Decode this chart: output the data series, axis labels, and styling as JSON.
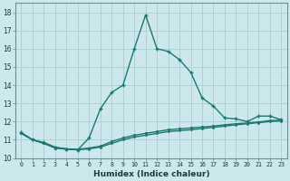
{
  "xlabel": "Humidex (Indice chaleur)",
  "bg_color": "#cce8ec",
  "grid_color": "#aacdd2",
  "line_color": "#1a7a6e",
  "ylim": [
    10.0,
    18.5
  ],
  "xlim": [
    -0.5,
    23.5
  ],
  "yticks": [
    10,
    11,
    12,
    13,
    14,
    15,
    16,
    17,
    18
  ],
  "xticks": [
    0,
    1,
    2,
    3,
    4,
    5,
    6,
    7,
    8,
    9,
    10,
    11,
    12,
    13,
    14,
    15,
    16,
    17,
    18,
    19,
    20,
    21,
    22,
    23
  ],
  "line1_x": [
    0,
    1,
    2,
    3,
    4,
    5,
    6,
    7,
    8,
    9,
    10,
    11,
    12,
    13,
    14,
    15,
    16,
    17,
    18,
    19,
    20,
    21,
    22,
    23
  ],
  "line1_y": [
    11.4,
    11.0,
    10.85,
    10.6,
    10.5,
    10.45,
    11.1,
    12.7,
    13.6,
    14.0,
    16.0,
    17.85,
    16.0,
    15.85,
    15.4,
    14.7,
    13.3,
    12.85,
    12.2,
    12.15,
    12.0,
    12.3,
    12.3,
    12.1
  ],
  "line2_x": [
    0,
    1,
    2,
    3,
    4,
    5,
    6,
    7,
    8,
    9,
    10,
    11,
    12,
    13,
    14,
    15,
    16,
    17,
    18,
    19,
    20,
    21,
    22,
    23
  ],
  "line2_y": [
    11.35,
    11.0,
    10.8,
    10.55,
    10.5,
    10.48,
    10.55,
    10.65,
    10.9,
    11.1,
    11.25,
    11.35,
    11.45,
    11.55,
    11.6,
    11.65,
    11.7,
    11.75,
    11.82,
    11.88,
    11.92,
    11.98,
    12.05,
    12.08
  ],
  "line3_x": [
    0,
    1,
    2,
    3,
    4,
    5,
    6,
    7,
    8,
    9,
    10,
    11,
    12,
    13,
    14,
    15,
    16,
    17,
    18,
    19,
    20,
    21,
    22,
    23
  ],
  "line3_y": [
    11.35,
    11.0,
    10.8,
    10.55,
    10.48,
    10.45,
    10.5,
    10.6,
    10.8,
    11.0,
    11.15,
    11.25,
    11.35,
    11.45,
    11.5,
    11.55,
    11.62,
    11.68,
    11.75,
    11.82,
    11.88,
    11.94,
    12.0,
    12.03
  ]
}
